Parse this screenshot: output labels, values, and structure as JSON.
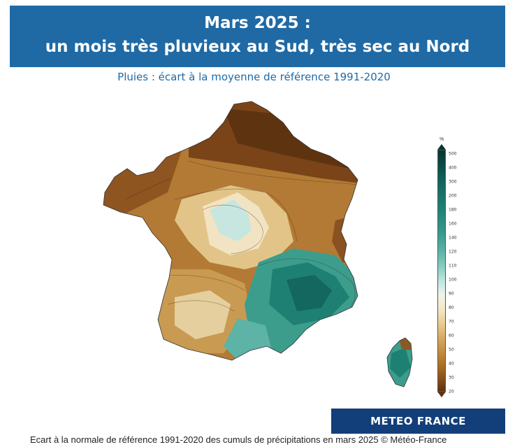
{
  "header": {
    "title_line1": "Mars 2025 :",
    "title_line2": "un mois très pluvieux au Sud, très sec au Nord",
    "color": "#1f6aa5"
  },
  "subtitle": "Pluies : écart à la moyenne de référence 1991-2020",
  "legend": {
    "unit": "%",
    "ticks": [
      "500",
      "400",
      "300",
      "200",
      "180",
      "160",
      "140",
      "120",
      "110",
      "100",
      "90",
      "80",
      "70",
      "60",
      "50",
      "40",
      "30",
      "20"
    ],
    "colors": {
      "dry": "#5e3310",
      "normal": "#eef4ea",
      "wet": "#06352f"
    }
  },
  "brand": {
    "label": "METEO FRANCE",
    "color": "#123f7a"
  },
  "caption": "Ecart à la normale de référence 1991-2020 des cumuls de précipitations en mars 2025 © Météo-France"
}
